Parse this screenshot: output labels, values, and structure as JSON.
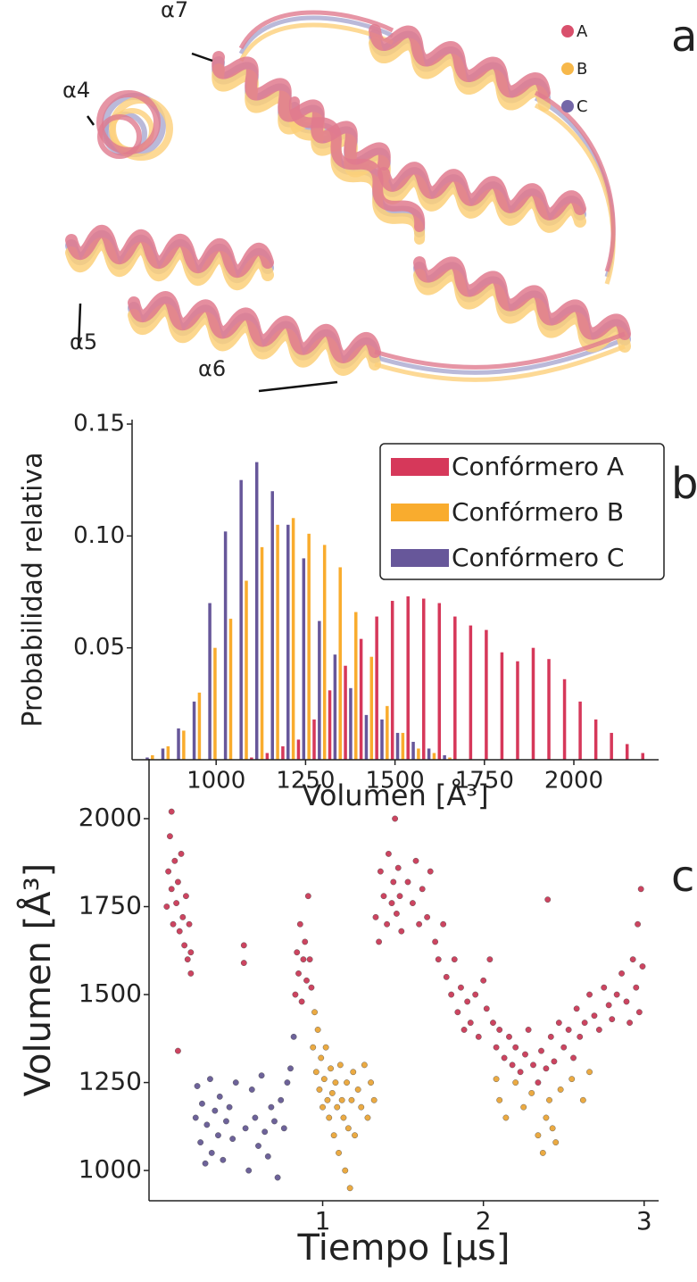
{
  "structure": {
    "panel_label": "a",
    "helix_labels": [
      "α4",
      "α7",
      "α5",
      "α6"
    ],
    "legend": [
      {
        "label": "A",
        "color": "#d9506c"
      },
      {
        "label": "B",
        "color": "#f7b84a"
      },
      {
        "label": "C",
        "color": "#7467a8"
      }
    ]
  },
  "chart_data": [
    {
      "type": "histogram",
      "panel_label": "b",
      "xlabel": "Volumen [Å³]",
      "ylabel": "Probabilidad relativa",
      "bins": [
        800,
        843.75,
        887.5,
        931.25,
        975,
        1018.75,
        1062.5,
        1106.25,
        1150,
        1193.75,
        1237.5,
        1281.25,
        1325,
        1368.75,
        1412.5,
        1456.25,
        1500,
        1543.75,
        1587.5,
        1631.25,
        1675,
        1718.75,
        1762.5,
        1806.25,
        1850,
        1893.75,
        1937.5,
        1981.25,
        2025,
        2068.75,
        2112.5,
        2156.25,
        2200
      ],
      "series": [
        {
          "name": "Confórmero A",
          "color": "#d6385a",
          "values": [
            0,
            0,
            0,
            0,
            0,
            0,
            0.001,
            0.003,
            0.006,
            0.009,
            0.018,
            0.031,
            0.042,
            0.054,
            0.064,
            0.071,
            0.073,
            0.072,
            0.07,
            0.064,
            0.06,
            0.058,
            0.048,
            0.044,
            0.05,
            0.045,
            0.036,
            0.026,
            0.018,
            0.012,
            0.007,
            0.003
          ]
        },
        {
          "name": "Confórmero B",
          "color": "#f9ac2e",
          "values": [
            0.002,
            0.006,
            0.013,
            0.03,
            0.05,
            0.063,
            0.08,
            0.095,
            0.105,
            0.108,
            0.101,
            0.096,
            0.086,
            0.066,
            0.046,
            0.024,
            0.012,
            0.005,
            0.003,
            0.001,
            0,
            0,
            0,
            0,
            0,
            0,
            0,
            0,
            0,
            0,
            0,
            0
          ]
        },
        {
          "name": "Confórmero C",
          "color": "#67579a",
          "values": [
            0.001,
            0.005,
            0.014,
            0.026,
            0.07,
            0.102,
            0.125,
            0.133,
            0.12,
            0.105,
            0.09,
            0.062,
            0.047,
            0.032,
            0.02,
            0.018,
            0.012,
            0.008,
            0.005,
            0.002,
            0,
            0,
            0,
            0,
            0,
            0,
            0,
            0,
            0,
            0,
            0,
            0
          ]
        }
      ],
      "xlim": [
        765,
        2237
      ],
      "ylim": [
        0,
        0.152
      ],
      "xticks": [
        1000,
        1250,
        1500,
        1750,
        2000
      ],
      "yticks": [
        0.05,
        {
          "value": 0.1,
          "label": "0.10"
        },
        0.15
      ],
      "legend": "upper right"
    },
    {
      "type": "scatter",
      "panel_label": "c",
      "xlabel": "Tiempo [µs]",
      "ylabel": "Volumen [Å³]",
      "series": [
        {
          "color": "#c7304f",
          "x": [
            0.03,
            0.04,
            0.05,
            0.06,
            0.06,
            0.07,
            0.08,
            0.09,
            0.1,
            0.11,
            0.12,
            0.13,
            0.14,
            0.15,
            0.16,
            0.17,
            0.18,
            0.18,
            0.1,
            0.51,
            0.51,
            0.83,
            0.84,
            0.85,
            0.86,
            0.87,
            0.88,
            0.89,
            0.9,
            0.91,
            0.92,
            0.93,
            1.33,
            1.35,
            1.36,
            1.38,
            1.4,
            1.41,
            1.43,
            1.44,
            1.45,
            1.46,
            1.47,
            1.48,
            1.49,
            1.53,
            1.56,
            1.58,
            1.6,
            1.62,
            1.65,
            1.67,
            1.7,
            1.72,
            1.75,
            1.77,
            1.8,
            1.82,
            1.84,
            1.86,
            1.88,
            1.9,
            1.92,
            1.95,
            1.97,
            2.0,
            2.02,
            2.04,
            2.06,
            2.08,
            2.1,
            2.13,
            2.16,
            2.18,
            2.2,
            2.23,
            2.26,
            2.28,
            2.31,
            2.34,
            2.36,
            2.39,
            2.42,
            2.44,
            2.47,
            2.5,
            2.53,
            2.56,
            2.58,
            2.6,
            2.63,
            2.66,
            2.69,
            2.72,
            2.75,
            2.78,
            2.8,
            2.83,
            2.86,
            2.89,
            2.91,
            2.93,
            2.95,
            2.96,
            2.97,
            2.98,
            2.99,
            2.4
          ],
          "values": [
            1750,
            1850,
            1950,
            2020,
            1800,
            1700,
            1880,
            1760,
            1820,
            1680,
            1900,
            1720,
            1640,
            1780,
            1600,
            1700,
            1620,
            1560,
            1340,
            1640,
            1590,
            1500,
            1620,
            1560,
            1700,
            1480,
            1600,
            1650,
            1540,
            1780,
            1600,
            1520,
            1720,
            1650,
            1850,
            1780,
            1700,
            1900,
            1760,
            1820,
            2000,
            1730,
            1860,
            1780,
            1680,
            1820,
            1760,
            1880,
            1700,
            1800,
            1720,
            1850,
            1650,
            1600,
            1700,
            1550,
            1500,
            1600,
            1450,
            1520,
            1400,
            1480,
            1420,
            1500,
            1380,
            1540,
            1460,
            1600,
            1420,
            1350,
            1400,
            1320,
            1380,
            1300,
            1350,
            1280,
            1330,
            1400,
            1300,
            1250,
            1340,
            1290,
            1380,
            1310,
            1420,
            1350,
            1400,
            1320,
            1460,
            1380,
            1420,
            1500,
            1440,
            1400,
            1520,
            1470,
            1430,
            1500,
            1560,
            1480,
            1420,
            1600,
            1520,
            1700,
            1450,
            1800,
            1580,
            1770
          ]
        },
        {
          "color": "#e9a12e",
          "x": [
            0.94,
            0.95,
            0.96,
            0.97,
            0.98,
            0.99,
            1.0,
            1.01,
            1.02,
            1.03,
            1.04,
            1.05,
            1.06,
            1.07,
            1.08,
            1.09,
            1.1,
            1.11,
            1.12,
            1.13,
            1.14,
            1.15,
            1.16,
            1.17,
            1.18,
            1.19,
            1.2,
            1.22,
            1.24,
            1.26,
            1.28,
            1.3,
            1.32,
            2.08,
            2.1,
            2.14,
            2.2,
            2.25,
            2.3,
            2.34,
            2.37,
            2.39,
            2.41,
            2.43,
            2.45,
            2.48,
            2.55,
            2.62,
            2.66
          ],
          "values": [
            1350,
            1450,
            1280,
            1400,
            1230,
            1320,
            1180,
            1260,
            1350,
            1200,
            1150,
            1290,
            1220,
            1100,
            1250,
            1180,
            1050,
            1300,
            1200,
            1150,
            1000,
            1250,
            1120,
            950,
            1200,
            1280,
            1100,
            1230,
            1180,
            1300,
            1150,
            1250,
            1200,
            1260,
            1200,
            1150,
            1250,
            1180,
            1220,
            1100,
            1050,
            1150,
            1200,
            1120,
            1080,
            1230,
            1260,
            1200,
            1280
          ]
        },
        {
          "color": "#5e528f",
          "x": [
            0.21,
            0.22,
            0.24,
            0.25,
            0.27,
            0.28,
            0.3,
            0.31,
            0.33,
            0.35,
            0.36,
            0.38,
            0.4,
            0.42,
            0.44,
            0.46,
            0.52,
            0.54,
            0.56,
            0.58,
            0.6,
            0.62,
            0.64,
            0.66,
            0.68,
            0.7,
            0.72,
            0.74,
            0.76,
            0.78,
            0.8,
            0.82
          ],
          "values": [
            1150,
            1240,
            1080,
            1190,
            1020,
            1130,
            1260,
            1050,
            1170,
            1100,
            1210,
            1030,
            1140,
            1180,
            1090,
            1250,
            1120,
            1000,
            1230,
            1150,
            1070,
            1270,
            1110,
            1040,
            1180,
            1140,
            980,
            1200,
            1120,
            1250,
            1290,
            1380
          ]
        }
      ],
      "xlim": [
        -0.08,
        3.09
      ],
      "ylim": [
        914,
        2170
      ],
      "xticks": [
        1,
        2,
        3
      ],
      "yticks": [
        1000,
        1250,
        1500,
        1750,
        2000
      ]
    }
  ]
}
